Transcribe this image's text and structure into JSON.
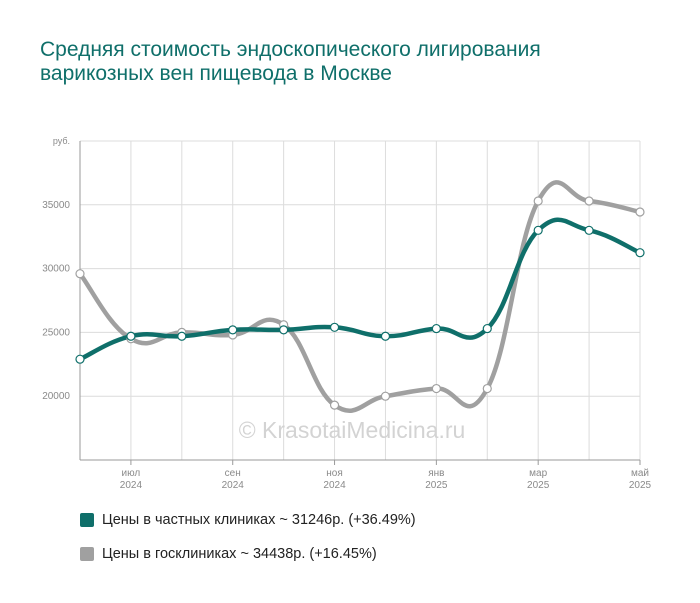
{
  "chart_data": {
    "type": "line",
    "title": "Средняя стоимость эндоскопического лигирования варикозных вен пищевода в Москве",
    "ylabel": "руб.",
    "ylim": [
      15000,
      40000
    ],
    "yticks": [
      20000,
      25000,
      30000,
      35000
    ],
    "x": [
      "2024-06",
      "2024-07",
      "2024-08",
      "2024-09",
      "2024-10",
      "2024-11",
      "2024-12",
      "2025-01",
      "2025-02",
      "2025-03",
      "2025-04",
      "2025-05"
    ],
    "xtick_labels": [
      {
        "index": 1,
        "month": "июл",
        "year": "2024"
      },
      {
        "index": 3,
        "month": "сен",
        "year": "2024"
      },
      {
        "index": 5,
        "month": "ноя",
        "year": "2024"
      },
      {
        "index": 7,
        "month": "янв",
        "year": "2025"
      },
      {
        "index": 9,
        "month": "мар",
        "year": "2025"
      },
      {
        "index": 11,
        "month": "май",
        "year": "2025"
      }
    ],
    "grid": true,
    "legend_position": "bottom",
    "watermark": "© KrasotaiMedicina.ru",
    "series": [
      {
        "name": "Цены в частных клиниках ~ 31246р. (+36.49%)",
        "color": "#0f6f6a",
        "values": [
          22900,
          24700,
          24700,
          25200,
          25200,
          25400,
          24700,
          25300,
          25300,
          33000,
          33000,
          31246
        ]
      },
      {
        "name": "Цены в госклиниках ~ 34438р. (+16.45%)",
        "color": "#a0a0a0",
        "values": [
          29600,
          24500,
          25000,
          24800,
          25600,
          19300,
          20000,
          20600,
          20600,
          35300,
          35300,
          34438
        ]
      }
    ]
  }
}
